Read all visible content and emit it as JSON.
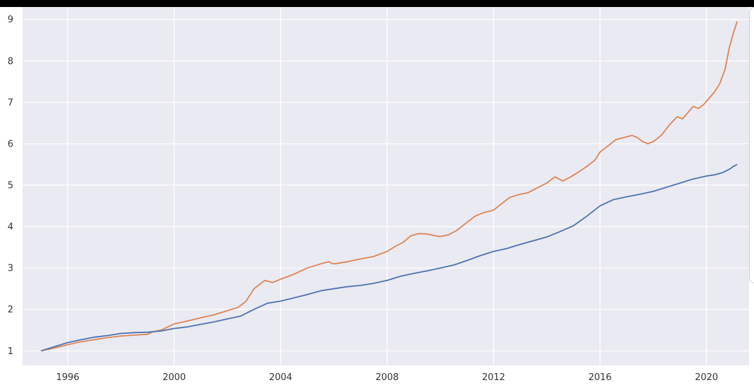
{
  "chart_data": {
    "type": "line",
    "title": "",
    "xlabel": "",
    "ylabel": "",
    "xlim": [
      1994.3,
      2021.6
    ],
    "ylim": [
      0.65,
      9.3
    ],
    "xticks": [
      {
        "value": 1996,
        "label": "1996"
      },
      {
        "value": 2000,
        "label": "2000"
      },
      {
        "value": 2004,
        "label": "2004"
      },
      {
        "value": 2008,
        "label": "2008"
      },
      {
        "value": 2012,
        "label": "2012"
      },
      {
        "value": 2016,
        "label": "2016"
      },
      {
        "value": 2020,
        "label": "2020"
      }
    ],
    "yticks": [
      {
        "value": 1,
        "label": "1"
      },
      {
        "value": 2,
        "label": "2"
      },
      {
        "value": 3,
        "label": "3"
      },
      {
        "value": 4,
        "label": "4"
      },
      {
        "value": 5,
        "label": "5"
      },
      {
        "value": 6,
        "label": "6"
      },
      {
        "value": 7,
        "label": "7"
      },
      {
        "value": 8,
        "label": "8"
      },
      {
        "value": 9,
        "label": "9"
      }
    ],
    "grid": true,
    "legend": "right (cut off)",
    "background_color": "#eaeaf2",
    "grid_color": "#ffffff",
    "series": [
      {
        "color": "#dd8452",
        "points": [
          [
            1995.0,
            1.0
          ],
          [
            1995.5,
            1.07
          ],
          [
            1996.0,
            1.15
          ],
          [
            1996.5,
            1.22
          ],
          [
            1997.0,
            1.27
          ],
          [
            1997.5,
            1.32
          ],
          [
            1998.0,
            1.36
          ],
          [
            1998.5,
            1.38
          ],
          [
            1999.0,
            1.4
          ],
          [
            1999.2,
            1.46
          ],
          [
            1999.5,
            1.5
          ],
          [
            2000.0,
            1.65
          ],
          [
            2000.5,
            1.72
          ],
          [
            2001.0,
            1.8
          ],
          [
            2001.5,
            1.87
          ],
          [
            2002.0,
            1.97
          ],
          [
            2002.4,
            2.05
          ],
          [
            2002.7,
            2.2
          ],
          [
            2003.0,
            2.5
          ],
          [
            2003.4,
            2.7
          ],
          [
            2003.7,
            2.65
          ],
          [
            2004.0,
            2.73
          ],
          [
            2004.5,
            2.85
          ],
          [
            2005.0,
            3.0
          ],
          [
            2005.5,
            3.1
          ],
          [
            2005.8,
            3.15
          ],
          [
            2006.0,
            3.1
          ],
          [
            2006.5,
            3.15
          ],
          [
            2007.0,
            3.22
          ],
          [
            2007.5,
            3.28
          ],
          [
            2008.0,
            3.4
          ],
          [
            2008.3,
            3.52
          ],
          [
            2008.6,
            3.62
          ],
          [
            2008.9,
            3.78
          ],
          [
            2009.2,
            3.83
          ],
          [
            2009.5,
            3.82
          ],
          [
            2009.8,
            3.78
          ],
          [
            2010.0,
            3.76
          ],
          [
            2010.3,
            3.8
          ],
          [
            2010.6,
            3.9
          ],
          [
            2011.0,
            4.1
          ],
          [
            2011.3,
            4.25
          ],
          [
            2011.6,
            4.33
          ],
          [
            2012.0,
            4.4
          ],
          [
            2012.3,
            4.55
          ],
          [
            2012.6,
            4.7
          ],
          [
            2013.0,
            4.78
          ],
          [
            2013.3,
            4.82
          ],
          [
            2013.6,
            4.92
          ],
          [
            2014.0,
            5.05
          ],
          [
            2014.3,
            5.2
          ],
          [
            2014.6,
            5.1
          ],
          [
            2014.9,
            5.2
          ],
          [
            2015.2,
            5.32
          ],
          [
            2015.5,
            5.45
          ],
          [
            2015.8,
            5.6
          ],
          [
            2016.0,
            5.8
          ],
          [
            2016.3,
            5.95
          ],
          [
            2016.6,
            6.1
          ],
          [
            2016.9,
            6.15
          ],
          [
            2017.2,
            6.2
          ],
          [
            2017.4,
            6.15
          ],
          [
            2017.6,
            6.05
          ],
          [
            2017.8,
            6.0
          ],
          [
            2018.0,
            6.05
          ],
          [
            2018.3,
            6.2
          ],
          [
            2018.6,
            6.45
          ],
          [
            2018.9,
            6.65
          ],
          [
            2019.1,
            6.6
          ],
          [
            2019.3,
            6.75
          ],
          [
            2019.5,
            6.9
          ],
          [
            2019.7,
            6.85
          ],
          [
            2019.9,
            6.95
          ],
          [
            2020.1,
            7.1
          ],
          [
            2020.3,
            7.25
          ],
          [
            2020.5,
            7.45
          ],
          [
            2020.7,
            7.8
          ],
          [
            2020.85,
            8.3
          ],
          [
            2021.0,
            8.65
          ],
          [
            2021.15,
            8.95
          ]
        ]
      },
      {
        "color": "#4c72b0",
        "points": [
          [
            1995.0,
            1.0
          ],
          [
            1995.5,
            1.1
          ],
          [
            1996.0,
            1.2
          ],
          [
            1996.5,
            1.27
          ],
          [
            1997.0,
            1.33
          ],
          [
            1997.5,
            1.37
          ],
          [
            1998.0,
            1.42
          ],
          [
            1998.5,
            1.44
          ],
          [
            1999.0,
            1.45
          ],
          [
            1999.5,
            1.48
          ],
          [
            2000.0,
            1.54
          ],
          [
            2000.5,
            1.58
          ],
          [
            2001.0,
            1.64
          ],
          [
            2001.5,
            1.7
          ],
          [
            2002.0,
            1.77
          ],
          [
            2002.5,
            1.84
          ],
          [
            2003.0,
            2.0
          ],
          [
            2003.5,
            2.15
          ],
          [
            2004.0,
            2.2
          ],
          [
            2004.5,
            2.28
          ],
          [
            2005.0,
            2.36
          ],
          [
            2005.5,
            2.45
          ],
          [
            2006.0,
            2.5
          ],
          [
            2006.5,
            2.55
          ],
          [
            2007.0,
            2.58
          ],
          [
            2007.5,
            2.63
          ],
          [
            2008.0,
            2.7
          ],
          [
            2008.5,
            2.8
          ],
          [
            2009.0,
            2.87
          ],
          [
            2009.5,
            2.93
          ],
          [
            2010.0,
            3.0
          ],
          [
            2010.5,
            3.07
          ],
          [
            2011.0,
            3.18
          ],
          [
            2011.5,
            3.3
          ],
          [
            2012.0,
            3.4
          ],
          [
            2012.5,
            3.47
          ],
          [
            2013.0,
            3.57
          ],
          [
            2013.5,
            3.66
          ],
          [
            2014.0,
            3.75
          ],
          [
            2014.5,
            3.88
          ],
          [
            2015.0,
            4.02
          ],
          [
            2015.5,
            4.25
          ],
          [
            2016.0,
            4.5
          ],
          [
            2016.5,
            4.65
          ],
          [
            2017.0,
            4.72
          ],
          [
            2017.5,
            4.78
          ],
          [
            2018.0,
            4.85
          ],
          [
            2018.5,
            4.95
          ],
          [
            2019.0,
            5.05
          ],
          [
            2019.5,
            5.15
          ],
          [
            2020.0,
            5.22
          ],
          [
            2020.3,
            5.25
          ],
          [
            2020.6,
            5.3
          ],
          [
            2020.9,
            5.4
          ],
          [
            2021.0,
            5.45
          ],
          [
            2021.15,
            5.5
          ]
        ]
      }
    ]
  }
}
